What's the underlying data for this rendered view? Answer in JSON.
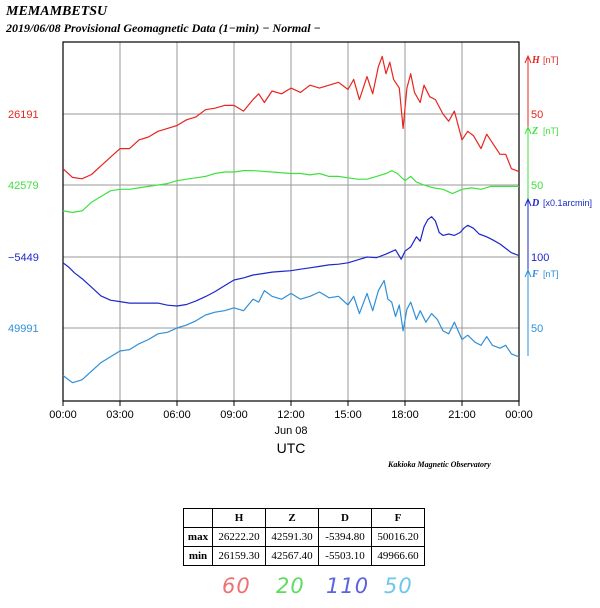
{
  "header": {
    "station": "MEMAMBETSU",
    "subtitle": "2019/06/08  Provisional Geomagnetic Data (1−min)  − Normal −"
  },
  "observatory": "Kakioka Magnetic Observatory",
  "chart_data": {
    "type": "line",
    "x_label": "UTC",
    "x_date_label": "Jun 08",
    "x_ticks": [
      "00:00",
      "03:00",
      "06:00",
      "09:00",
      "12:00",
      "15:00",
      "18:00",
      "21:00",
      "00:00"
    ],
    "x_range_hours": [
      0,
      24
    ],
    "grid": true,
    "series": [
      {
        "key": "H",
        "name": "H",
        "unit": "[nT]",
        "color": "#e8251f",
        "left_label": "26191",
        "right_tick": "50",
        "scale_per_band": 50,
        "points": [
          [
            0,
            -38
          ],
          [
            0.5,
            -44
          ],
          [
            1,
            -45
          ],
          [
            1.5,
            -42
          ],
          [
            2,
            -36
          ],
          [
            2.5,
            -30
          ],
          [
            3,
            -24
          ],
          [
            3.5,
            -24
          ],
          [
            4,
            -18
          ],
          [
            4.5,
            -16
          ],
          [
            5,
            -12
          ],
          [
            5.5,
            -10
          ],
          [
            6,
            -8
          ],
          [
            6.5,
            -4
          ],
          [
            7,
            -2
          ],
          [
            7.5,
            3
          ],
          [
            8,
            4
          ],
          [
            8.5,
            6
          ],
          [
            9,
            6
          ],
          [
            9.5,
            2
          ],
          [
            10,
            10
          ],
          [
            10.3,
            14
          ],
          [
            10.6,
            8
          ],
          [
            11,
            16
          ],
          [
            11.5,
            14
          ],
          [
            12,
            18
          ],
          [
            12.5,
            15
          ],
          [
            13,
            20
          ],
          [
            13.5,
            18
          ],
          [
            14,
            20
          ],
          [
            14.5,
            22
          ],
          [
            15,
            17
          ],
          [
            15.3,
            24
          ],
          [
            15.6,
            10
          ],
          [
            16,
            26
          ],
          [
            16.3,
            14
          ],
          [
            16.6,
            33
          ],
          [
            16.8,
            40
          ],
          [
            17,
            28
          ],
          [
            17.2,
            36
          ],
          [
            17.4,
            24
          ],
          [
            17.7,
            18
          ],
          [
            17.9,
            -10
          ],
          [
            18.1,
            18
          ],
          [
            18.3,
            28
          ],
          [
            18.5,
            15
          ],
          [
            18.8,
            8
          ],
          [
            19,
            20
          ],
          [
            19.3,
            12
          ],
          [
            19.6,
            10
          ],
          [
            20,
            0
          ],
          [
            20.3,
            -5
          ],
          [
            20.6,
            2
          ],
          [
            21,
            -18
          ],
          [
            21.3,
            -12
          ],
          [
            21.6,
            -15
          ],
          [
            22,
            -24
          ],
          [
            22.3,
            -14
          ],
          [
            22.6,
            -20
          ],
          [
            23,
            -28
          ],
          [
            23.3,
            -28
          ],
          [
            23.6,
            -38
          ],
          [
            24,
            -40
          ]
        ]
      },
      {
        "key": "Z",
        "name": "Z",
        "unit": "[nT]",
        "color": "#3ee23e",
        "left_label": "42579",
        "right_tick": "50",
        "scale_per_band": 50,
        "points": [
          [
            0,
            -18
          ],
          [
            0.5,
            -19
          ],
          [
            1,
            -18
          ],
          [
            1.5,
            -12
          ],
          [
            2,
            -8
          ],
          [
            2.5,
            -4
          ],
          [
            3,
            -3
          ],
          [
            3.5,
            -3
          ],
          [
            4,
            -2
          ],
          [
            4.5,
            -1
          ],
          [
            5,
            0
          ],
          [
            5.5,
            1
          ],
          [
            6,
            3
          ],
          [
            6.5,
            4
          ],
          [
            7,
            5
          ],
          [
            7.5,
            6
          ],
          [
            8,
            8
          ],
          [
            8.5,
            9
          ],
          [
            9,
            9
          ],
          [
            9.5,
            10
          ],
          [
            10,
            10
          ],
          [
            11,
            9
          ],
          [
            12,
            8
          ],
          [
            12.5,
            8
          ],
          [
            13,
            7
          ],
          [
            13.5,
            8
          ],
          [
            14,
            6
          ],
          [
            14.5,
            6
          ],
          [
            15,
            5
          ],
          [
            15.5,
            4
          ],
          [
            16,
            4
          ],
          [
            16.5,
            6
          ],
          [
            17,
            8
          ],
          [
            17.3,
            10
          ],
          [
            17.6,
            8
          ],
          [
            18,
            3
          ],
          [
            18.3,
            6
          ],
          [
            18.6,
            2
          ],
          [
            19,
            0
          ],
          [
            19.5,
            -2
          ],
          [
            20,
            -3
          ],
          [
            20.5,
            -6
          ],
          [
            21,
            -3
          ],
          [
            21.5,
            -2
          ],
          [
            22,
            -3
          ],
          [
            22.5,
            -1
          ],
          [
            23,
            -1
          ],
          [
            23.5,
            -1
          ],
          [
            24,
            -1
          ]
        ]
      },
      {
        "key": "D",
        "name": "D",
        "unit": "[x0.1arcmin]",
        "color": "#1c28c8",
        "left_label": "−5449",
        "right_tick": "100",
        "scale_per_band": 100,
        "points": [
          [
            0,
            -8
          ],
          [
            0.3,
            -14
          ],
          [
            0.6,
            -22
          ],
          [
            1,
            -30
          ],
          [
            1.5,
            -42
          ],
          [
            2,
            -54
          ],
          [
            2.5,
            -60
          ],
          [
            3,
            -62
          ],
          [
            3.5,
            -64
          ],
          [
            4,
            -64
          ],
          [
            4.5,
            -64
          ],
          [
            5,
            -64
          ],
          [
            5.5,
            -67
          ],
          [
            6,
            -68
          ],
          [
            6.5,
            -66
          ],
          [
            7,
            -61
          ],
          [
            7.5,
            -55
          ],
          [
            8,
            -48
          ],
          [
            8.5,
            -40
          ],
          [
            9,
            -32
          ],
          [
            9.5,
            -29
          ],
          [
            10,
            -25
          ],
          [
            10.5,
            -23
          ],
          [
            11,
            -21
          ],
          [
            11.5,
            -20
          ],
          [
            12,
            -19
          ],
          [
            12.5,
            -17
          ],
          [
            13,
            -15
          ],
          [
            13.5,
            -13
          ],
          [
            14,
            -11
          ],
          [
            14.5,
            -10
          ],
          [
            15,
            -8
          ],
          [
            15.5,
            -4
          ],
          [
            16,
            0
          ],
          [
            16.5,
            -1
          ],
          [
            17,
            4
          ],
          [
            17.5,
            10
          ],
          [
            17.8,
            -3
          ],
          [
            18,
            8
          ],
          [
            18.3,
            14
          ],
          [
            18.6,
            28
          ],
          [
            18.8,
            22
          ],
          [
            19,
            42
          ],
          [
            19.2,
            52
          ],
          [
            19.4,
            56
          ],
          [
            19.6,
            50
          ],
          [
            19.8,
            34
          ],
          [
            20,
            30
          ],
          [
            20.3,
            32
          ],
          [
            20.6,
            30
          ],
          [
            20.9,
            34
          ],
          [
            21.1,
            40
          ],
          [
            21.3,
            44
          ],
          [
            21.6,
            40
          ],
          [
            21.9,
            32
          ],
          [
            22.3,
            28
          ],
          [
            22.6,
            24
          ],
          [
            23,
            18
          ],
          [
            23.3,
            12
          ],
          [
            23.6,
            6
          ],
          [
            24,
            2
          ]
        ]
      },
      {
        "key": "F",
        "name": "F",
        "unit": "[nT]",
        "color": "#2f8fd8",
        "left_label": "49991",
        "right_tick": "50",
        "scale_per_band": 50,
        "points": [
          [
            0,
            -33
          ],
          [
            0.5,
            -38
          ],
          [
            1,
            -36
          ],
          [
            1.5,
            -30
          ],
          [
            2,
            -24
          ],
          [
            2.5,
            -20
          ],
          [
            3,
            -16
          ],
          [
            3.5,
            -15
          ],
          [
            4,
            -11
          ],
          [
            4.5,
            -8
          ],
          [
            5,
            -4
          ],
          [
            5.5,
            -3
          ],
          [
            6,
            0
          ],
          [
            6.5,
            2
          ],
          [
            7,
            5
          ],
          [
            7.5,
            9
          ],
          [
            8,
            11
          ],
          [
            8.5,
            12
          ],
          [
            9,
            14
          ],
          [
            9.5,
            12
          ],
          [
            10,
            20
          ],
          [
            10.3,
            18
          ],
          [
            10.6,
            26
          ],
          [
            11,
            22
          ],
          [
            11.5,
            20
          ],
          [
            12,
            24
          ],
          [
            12.5,
            20
          ],
          [
            13,
            22
          ],
          [
            13.5,
            25
          ],
          [
            14,
            21
          ],
          [
            14.5,
            22
          ],
          [
            15,
            16
          ],
          [
            15.3,
            22
          ],
          [
            15.6,
            10
          ],
          [
            16,
            24
          ],
          [
            16.3,
            12
          ],
          [
            16.6,
            26
          ],
          [
            16.9,
            33
          ],
          [
            17.1,
            20
          ],
          [
            17.3,
            18
          ],
          [
            17.5,
            8
          ],
          [
            17.7,
            16
          ],
          [
            17.9,
            -2
          ],
          [
            18.1,
            13
          ],
          [
            18.3,
            18
          ],
          [
            18.6,
            6
          ],
          [
            18.8,
            12
          ],
          [
            19.1,
            4
          ],
          [
            19.4,
            10
          ],
          [
            19.7,
            6
          ],
          [
            20,
            -2
          ],
          [
            20.3,
            -4
          ],
          [
            20.6,
            4
          ],
          [
            21,
            -8
          ],
          [
            21.3,
            -5
          ],
          [
            21.7,
            -10
          ],
          [
            22,
            -12
          ],
          [
            22.3,
            -6
          ],
          [
            22.6,
            -12
          ],
          [
            23,
            -14
          ],
          [
            23.3,
            -12
          ],
          [
            23.6,
            -18
          ],
          [
            24,
            -20
          ]
        ]
      }
    ]
  },
  "stats_table": {
    "columns": [
      "H",
      "Z",
      "D",
      "F"
    ],
    "rows": [
      {
        "label": "max",
        "values": [
          "26222.20",
          "42591.30",
          "-5394.80",
          "50016.20"
        ]
      },
      {
        "label": "min",
        "values": [
          "26159.30",
          "42567.40",
          "-5503.10",
          "49966.60"
        ]
      }
    ]
  },
  "scale_labels": [
    "60",
    "20",
    "110",
    "50"
  ]
}
